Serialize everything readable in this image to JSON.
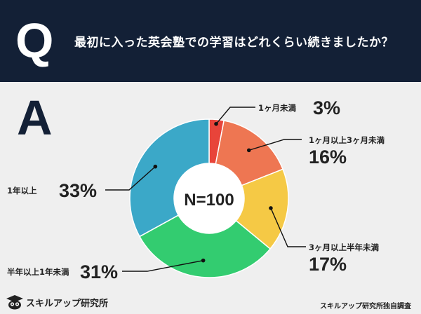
{
  "question": {
    "letter": "Q",
    "text": "最初に入った英会塾での学習はどれくらい続きましたか？"
  },
  "answer": {
    "letter": "A"
  },
  "chart_data": {
    "type": "pie",
    "style": "donut",
    "center_label": "N=100",
    "categories": [
      "1ヶ月未満",
      "1ヶ月以上3ヶ月未満",
      "3ヶ月以上半年未満",
      "半年以上1年未満",
      "1年以上"
    ],
    "values": [
      3,
      16,
      17,
      31,
      33
    ],
    "value_labels": [
      "3%",
      "16%",
      "17%",
      "31%",
      "33%"
    ],
    "colors": [
      "#e8443a",
      "#ee7652",
      "#f5c945",
      "#33cc70",
      "#3ba8c8"
    ]
  },
  "footer": {
    "logo_text": "スキルアップ研究所",
    "logo_icon": "graduation-owl-icon",
    "source": "スキルアップ研究所独自調査"
  }
}
